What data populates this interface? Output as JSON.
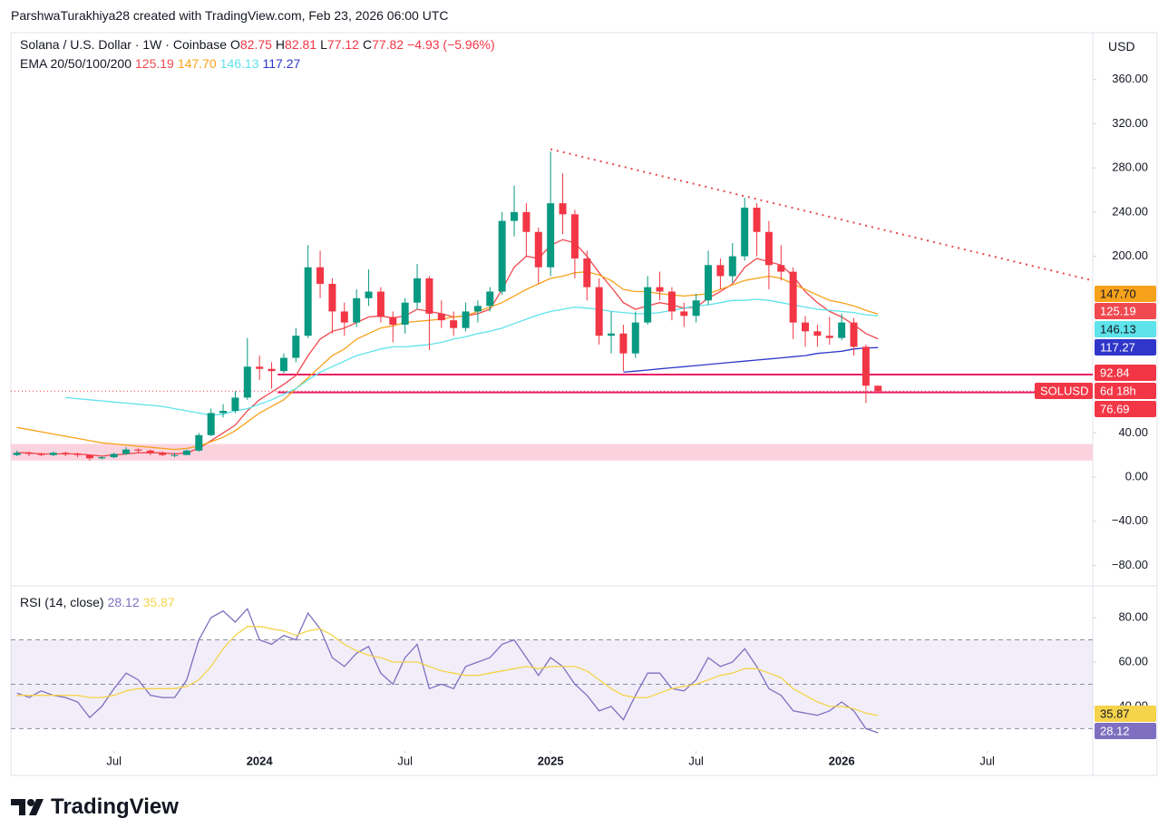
{
  "header": {
    "credit": "ParshwaTurakhiya28 created with TradingView.com, Feb 23, 2026 06:00 UTC",
    "currency": "USD",
    "logo": "TradingView"
  },
  "legend": {
    "symbol": "Solana / U.S. Dollar · 1W · Coinbase",
    "keys": [
      "O",
      "H",
      "L",
      "C"
    ],
    "change": "−4.93 (−5.96%)",
    "ema": "EMA 20/50/100/200",
    "rsi": "RSI (14, close)",
    "ticker": "SOLUSD",
    "countdown": "6d 18h"
  },
  "chart_data": [
    {
      "type": "candlestick",
      "up_color": "#089981",
      "down_color": "#f23645",
      "xlim": [
        -0.5,
        88.7
      ],
      "xticks": [
        {
          "value": 8,
          "label": "Jul"
        },
        {
          "value": 20,
          "label": "2024"
        },
        {
          "value": 32,
          "label": "Jul"
        },
        {
          "value": 44,
          "label": "2025"
        },
        {
          "value": 56,
          "label": "Jul"
        },
        {
          "value": 68,
          "label": "2026"
        },
        {
          "value": 80,
          "label": "Jul"
        }
      ],
      "ylim": [
        -97.7,
        402.5
      ],
      "yticks": [
        {
          "value": 360,
          "label": "360.00"
        },
        {
          "value": 320,
          "label": "320.00"
        },
        {
          "value": 280,
          "label": "280.00"
        },
        {
          "value": 240,
          "label": "240.00"
        },
        {
          "value": 200,
          "label": "200.00"
        },
        {
          "value": 40,
          "label": "40.00"
        },
        {
          "value": 0,
          "label": "0.00"
        },
        {
          "value": -40,
          "label": "−40.00"
        },
        {
          "value": -80,
          "label": "−80.00"
        }
      ],
      "ohlc": [
        [
          20,
          24,
          19,
          22
        ],
        [
          22,
          23,
          19,
          21
        ],
        [
          21,
          22,
          19,
          20
        ],
        [
          20,
          23,
          19,
          22
        ],
        [
          22,
          23,
          19,
          21
        ],
        [
          21,
          22,
          18,
          20
        ],
        [
          20,
          20,
          15,
          17
        ],
        [
          17,
          19,
          16,
          18
        ],
        [
          18,
          22,
          17,
          21
        ],
        [
          21,
          27,
          20,
          25
        ],
        [
          25,
          26,
          22,
          24
        ],
        [
          24,
          25,
          20,
          22
        ],
        [
          22,
          23,
          19,
          20
        ],
        [
          20,
          22,
          18,
          20
        ],
        [
          20,
          25,
          20,
          24
        ],
        [
          24,
          40,
          23,
          38
        ],
        [
          38,
          62,
          37,
          58
        ],
        [
          58,
          66,
          54,
          60
        ],
        [
          60,
          78,
          58,
          72
        ],
        [
          72,
          126,
          70,
          100
        ],
        [
          100,
          110,
          88,
          98
        ],
        [
          98,
          104,
          80,
          96
        ],
        [
          96,
          112,
          94,
          108
        ],
        [
          108,
          135,
          104,
          128
        ],
        [
          128,
          210,
          126,
          190
        ],
        [
          190,
          205,
          162,
          175
        ],
        [
          175,
          180,
          130,
          150
        ],
        [
          150,
          158,
          128,
          140
        ],
        [
          140,
          170,
          136,
          162
        ],
        [
          162,
          188,
          155,
          168
        ],
        [
          168,
          172,
          140,
          145
        ],
        [
          145,
          150,
          122,
          138
        ],
        [
          138,
          162,
          130,
          158
        ],
        [
          158,
          193,
          152,
          180
        ],
        [
          180,
          182,
          115,
          148
        ],
        [
          148,
          160,
          135,
          142
        ],
        [
          142,
          150,
          128,
          135
        ],
        [
          135,
          158,
          132,
          150
        ],
        [
          150,
          160,
          140,
          155
        ],
        [
          155,
          172,
          150,
          168
        ],
        [
          168,
          240,
          165,
          232
        ],
        [
          232,
          264,
          218,
          240
        ],
        [
          240,
          248,
          200,
          222
        ],
        [
          222,
          226,
          175,
          190
        ],
        [
          190,
          295,
          182,
          248
        ],
        [
          248,
          275,
          220,
          238
        ],
        [
          238,
          242,
          180,
          198
        ],
        [
          198,
          205,
          160,
          172
        ],
        [
          172,
          180,
          120,
          128
        ],
        [
          128,
          150,
          112,
          130
        ],
        [
          130,
          138,
          96,
          112
        ],
        [
          112,
          150,
          108,
          140
        ],
        [
          140,
          182,
          138,
          172
        ],
        [
          172,
          186,
          160,
          168
        ],
        [
          168,
          172,
          142,
          150
        ],
        [
          150,
          158,
          136,
          146
        ],
        [
          146,
          166,
          140,
          160
        ],
        [
          160,
          205,
          156,
          192
        ],
        [
          192,
          198,
          170,
          182
        ],
        [
          182,
          212,
          176,
          200
        ],
        [
          200,
          253,
          196,
          244
        ],
        [
          244,
          248,
          200,
          222
        ],
        [
          222,
          232,
          170,
          192
        ],
        [
          192,
          210,
          178,
          186
        ],
        [
          186,
          190,
          125,
          140
        ],
        [
          140,
          146,
          118,
          132
        ],
        [
          132,
          138,
          118,
          128
        ],
        [
          128,
          145,
          120,
          126
        ],
        [
          126,
          148,
          124,
          140
        ],
        [
          140,
          144,
          110,
          118
        ],
        [
          118,
          120,
          67,
          82.75
        ],
        [
          82.75,
          82.81,
          77.12,
          77.82
        ]
      ],
      "series": [
        {
          "color": "#f0494f",
          "last_label": "125.19",
          "values": [
            22,
            22,
            21,
            21,
            21,
            21,
            20,
            19,
            20,
            21,
            22,
            22,
            22,
            21,
            22,
            26,
            33,
            40,
            47,
            60,
            70,
            77,
            84,
            92,
            110,
            125,
            132,
            135,
            140,
            145,
            146,
            144,
            146,
            152,
            150,
            148,
            145,
            146,
            148,
            152,
            170,
            190,
            200,
            198,
            210,
            215,
            212,
            200,
            185,
            172,
            158,
            152,
            155,
            158,
            156,
            153,
            154,
            162,
            168,
            175,
            190,
            198,
            195,
            192,
            182,
            168,
            158,
            150,
            145,
            138,
            130,
            125.19
          ]
        },
        {
          "color": "#f7a21b",
          "last_label": "147.70",
          "values": [
            45,
            43,
            41,
            39,
            37,
            35,
            33,
            31,
            30,
            29,
            28,
            27,
            26,
            25,
            26,
            28,
            32,
            36,
            42,
            50,
            58,
            64,
            70,
            80,
            90,
            100,
            110,
            116,
            125,
            130,
            135,
            137,
            140,
            141,
            142,
            143,
            145,
            146,
            150,
            154,
            158,
            164,
            170,
            175,
            180,
            182,
            185,
            186,
            183,
            178,
            170,
            168,
            168,
            166,
            165,
            164,
            165,
            166,
            170,
            174,
            178,
            180,
            182,
            180,
            175,
            170,
            165,
            160,
            158,
            155,
            151,
            147.7
          ]
        },
        {
          "color": "#5ee3ea",
          "last_label": "146.13",
          "values": [
            null,
            null,
            null,
            null,
            72,
            71,
            70,
            69,
            68,
            67,
            66,
            65,
            64,
            62,
            60,
            58,
            56,
            57,
            60,
            62,
            66,
            70,
            75,
            80,
            88,
            95,
            100,
            105,
            110,
            113,
            116,
            118,
            118,
            119,
            120,
            122,
            125,
            127,
            130,
            132,
            135,
            139,
            143,
            147,
            150,
            152,
            154,
            153,
            152,
            150,
            149,
            148,
            148,
            149,
            151,
            153,
            155,
            156,
            158,
            160,
            160,
            161,
            160,
            158,
            156,
            154,
            152,
            151,
            150,
            149,
            147,
            146.13
          ]
        },
        {
          "color": "#2f36c9",
          "last_label": "117.27",
          "values": [
            null,
            null,
            null,
            null,
            null,
            null,
            null,
            null,
            null,
            null,
            null,
            null,
            null,
            null,
            null,
            null,
            null,
            null,
            null,
            null,
            null,
            null,
            null,
            null,
            null,
            null,
            null,
            null,
            null,
            null,
            null,
            null,
            null,
            null,
            null,
            null,
            null,
            null,
            null,
            null,
            null,
            null,
            null,
            null,
            null,
            null,
            null,
            null,
            null,
            null,
            95,
            96,
            97,
            98,
            99,
            100,
            101,
            102,
            103,
            104,
            105,
            106,
            107,
            108,
            109,
            110,
            112,
            113,
            114,
            116,
            117,
            117.27
          ]
        }
      ],
      "levels": [
        92.84,
        76.69
      ],
      "level_start": 21.5,
      "level_color": "#e91e63",
      "zone": [
        15,
        30
      ],
      "trendline": {
        "x": [
          44,
          88.7
        ],
        "y": [
          297,
          178
        ],
        "color": "#e5484d"
      }
    },
    {
      "type": "line",
      "ylim": [
        22.4,
        93.9
      ],
      "yticks": [
        {
          "value": 40,
          "label": "40.00"
        },
        {
          "value": 60,
          "label": "60.00"
        },
        {
          "value": 80,
          "label": "80.00"
        }
      ],
      "levels": [
        30,
        50,
        70
      ],
      "series": [
        {
          "color": "#7e6fc0",
          "values": [
            46,
            44,
            47,
            45,
            44,
            42,
            35,
            40,
            48,
            55,
            52,
            45,
            44,
            44,
            52,
            70,
            80,
            83,
            78,
            84,
            70,
            68,
            72,
            70,
            82,
            75,
            62,
            58,
            64,
            67,
            55,
            50,
            62,
            68,
            48,
            50,
            48,
            58,
            60,
            62,
            68,
            70,
            62,
            54,
            62,
            58,
            50,
            45,
            38,
            40,
            34,
            45,
            55,
            55,
            48,
            47,
            52,
            62,
            58,
            60,
            66,
            58,
            48,
            45,
            38,
            37,
            36,
            38,
            42,
            38,
            30,
            28.12
          ]
        },
        {
          "color": "#f5d34a",
          "values": [
            45,
            45,
            45,
            45,
            45,
            45,
            44,
            44,
            45,
            47,
            48,
            48,
            48,
            48,
            49,
            52,
            58,
            66,
            72,
            76,
            76,
            75,
            74,
            72,
            74,
            75,
            72,
            68,
            65,
            63,
            62,
            60,
            60,
            60,
            58,
            56,
            55,
            54,
            54,
            55,
            56,
            57,
            58,
            57,
            58,
            58,
            58,
            56,
            52,
            48,
            45,
            44,
            44,
            46,
            48,
            49,
            50,
            52,
            54,
            55,
            57,
            57,
            55,
            53,
            48,
            45,
            42,
            40,
            40,
            39,
            37,
            35.87
          ]
        }
      ]
    }
  ]
}
